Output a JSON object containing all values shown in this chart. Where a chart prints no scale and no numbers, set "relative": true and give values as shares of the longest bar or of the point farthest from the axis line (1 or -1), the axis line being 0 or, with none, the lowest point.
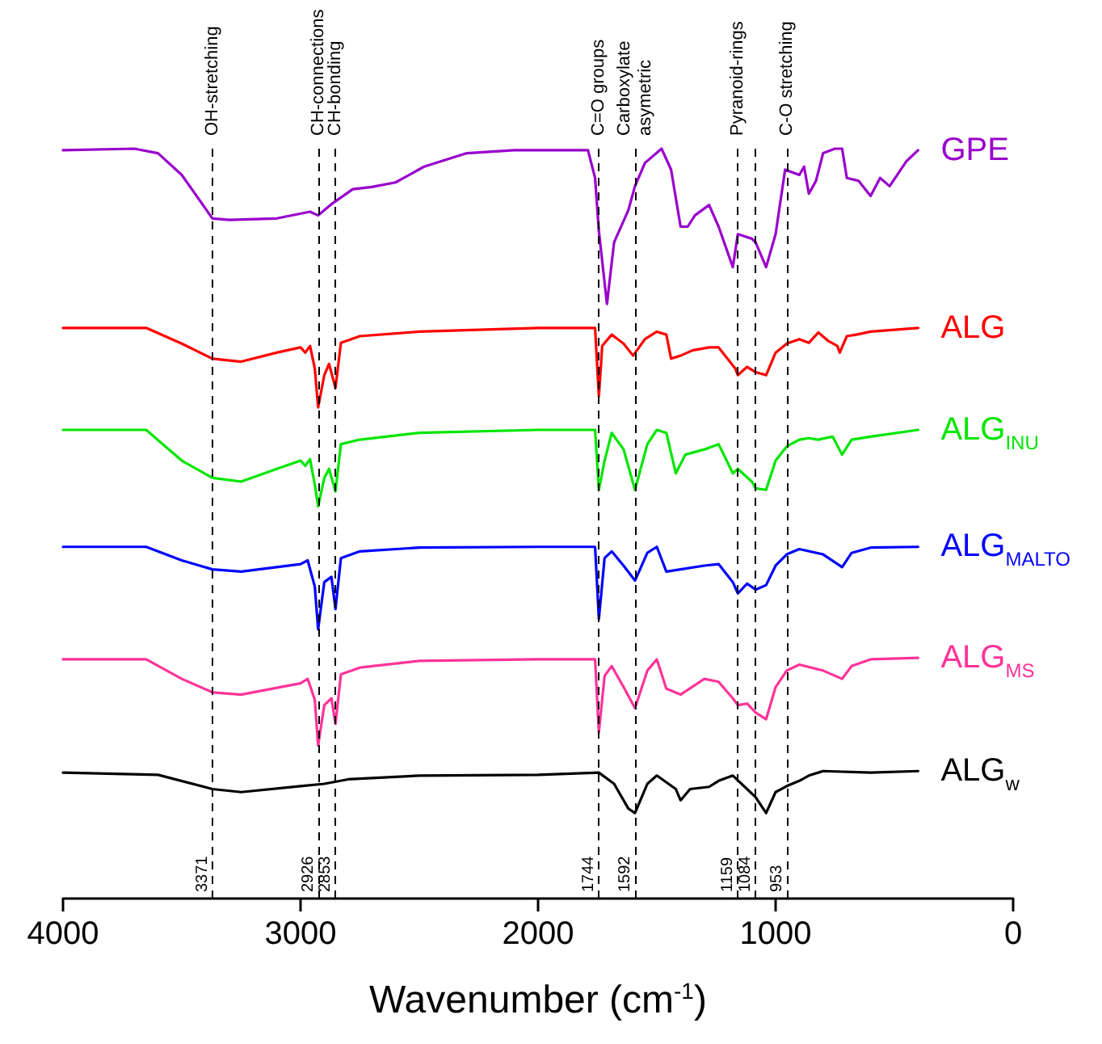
{
  "chart_data": {
    "type": "line",
    "relative": true,
    "xlabel": "Wavenumber (cm$^{-1}$)",
    "xlim": [
      4000,
      0
    ],
    "xticks": [
      4000,
      3000,
      2000,
      1000,
      0
    ],
    "marker": "none",
    "line_style": "solid",
    "grid": false,
    "legend": false,
    "series": [
      {
        "name": "GPE",
        "color": "#9900cc",
        "x": [
          4000,
          3700,
          3600,
          3500,
          3420,
          3371,
          3300,
          3100,
          2960,
          2926,
          2870,
          2780,
          2700,
          2600,
          2480,
          2300,
          2100,
          1790,
          1760,
          1744,
          1710,
          1680,
          1620,
          1592,
          1550,
          1480,
          1440,
          1400,
          1370,
          1340,
          1280,
          1240,
          1180,
          1159,
          1100,
          1084,
          1040,
          1000,
          960,
          900,
          880,
          860,
          830,
          800,
          750,
          720,
          700,
          650,
          600,
          560,
          520,
          450,
          400
        ],
        "values": [
          0.998,
          1.0,
          0.994,
          0.965,
          0.929,
          0.907,
          0.905,
          0.907,
          0.916,
          0.911,
          0.926,
          0.946,
          0.949,
          0.955,
          0.976,
          0.994,
          0.998,
          0.998,
          0.961,
          0.89,
          0.793,
          0.875,
          0.918,
          0.95,
          0.981,
          1.0,
          0.972,
          0.896,
          0.896,
          0.911,
          0.925,
          0.896,
          0.842,
          0.886,
          0.88,
          0.875,
          0.842,
          0.886,
          0.972,
          0.965,
          0.976,
          0.94,
          0.957,
          0.994,
          1.0,
          1.0,
          0.961,
          0.957,
          0.937,
          0.961,
          0.95,
          0.983,
          0.998
        ]
      },
      {
        "name": "ALG",
        "color": "#ff0000",
        "x": [
          4000,
          3650,
          3500,
          3371,
          3250,
          3100,
          3000,
          2980,
          2960,
          2940,
          2926,
          2900,
          2880,
          2853,
          2830,
          2750,
          2500,
          2000,
          1760,
          1744,
          1730,
          1690,
          1640,
          1600,
          1550,
          1500,
          1460,
          1440,
          1400,
          1350,
          1280,
          1240,
          1170,
          1159,
          1120,
          1084,
          1040,
          1000,
          953,
          900,
          860,
          820,
          780,
          740,
          730,
          700,
          660,
          600,
          400
        ],
        "values": [
          0.761,
          0.761,
          0.74,
          0.72,
          0.716,
          0.728,
          0.735,
          0.728,
          0.737,
          0.707,
          0.655,
          0.698,
          0.713,
          0.681,
          0.741,
          0.75,
          0.756,
          0.761,
          0.761,
          0.67,
          0.737,
          0.752,
          0.74,
          0.724,
          0.746,
          0.756,
          0.752,
          0.72,
          0.724,
          0.731,
          0.735,
          0.735,
          0.707,
          0.698,
          0.709,
          0.702,
          0.698,
          0.728,
          0.74,
          0.746,
          0.741,
          0.755,
          0.744,
          0.737,
          0.728,
          0.75,
          0.752,
          0.756,
          0.761
        ]
      },
      {
        "name": "ALG$_{INU}$",
        "color": "#00e600",
        "x": [
          4000,
          3650,
          3500,
          3371,
          3250,
          3100,
          3000,
          2980,
          2960,
          2940,
          2926,
          2900,
          2880,
          2853,
          2830,
          2750,
          2500,
          2000,
          1760,
          1744,
          1720,
          1690,
          1640,
          1592,
          1540,
          1500,
          1460,
          1420,
          1380,
          1300,
          1240,
          1180,
          1159,
          1100,
          1084,
          1040,
          1000,
          953,
          900,
          860,
          820,
          760,
          720,
          680,
          600,
          400
        ],
        "values": [
          0.625,
          0.625,
          0.584,
          0.561,
          0.556,
          0.573,
          0.584,
          0.577,
          0.586,
          0.552,
          0.523,
          0.561,
          0.573,
          0.543,
          0.606,
          0.612,
          0.621,
          0.625,
          0.625,
          0.545,
          0.584,
          0.621,
          0.599,
          0.545,
          0.606,
          0.625,
          0.621,
          0.567,
          0.592,
          0.599,
          0.606,
          0.567,
          0.573,
          0.556,
          0.547,
          0.545,
          0.584,
          0.603,
          0.612,
          0.614,
          0.612,
          0.616,
          0.592,
          0.612,
          0.616,
          0.625
        ]
      },
      {
        "name": "ALG$_{MALTO}$",
        "color": "#0000ff",
        "x": [
          4000,
          3650,
          3500,
          3371,
          3250,
          3000,
          2970,
          2940,
          2926,
          2900,
          2870,
          2853,
          2830,
          2750,
          2500,
          2000,
          1760,
          1744,
          1720,
          1690,
          1640,
          1592,
          1540,
          1500,
          1460,
          1400,
          1300,
          1240,
          1180,
          1159,
          1120,
          1084,
          1040,
          1000,
          953,
          900,
          800,
          720,
          680,
          600,
          400
        ],
        "values": [
          0.469,
          0.469,
          0.451,
          0.439,
          0.436,
          0.446,
          0.451,
          0.416,
          0.359,
          0.422,
          0.429,
          0.386,
          0.454,
          0.463,
          0.468,
          0.469,
          0.469,
          0.373,
          0.454,
          0.463,
          0.444,
          0.424,
          0.461,
          0.469,
          0.436,
          0.439,
          0.444,
          0.446,
          0.422,
          0.407,
          0.42,
          0.412,
          0.418,
          0.444,
          0.459,
          0.466,
          0.459,
          0.442,
          0.461,
          0.468,
          0.469
        ]
      },
      {
        "name": "ALG$_{MS}$",
        "color": "#ff3399",
        "x": [
          4000,
          3650,
          3500,
          3371,
          3250,
          3000,
          2970,
          2940,
          2926,
          2900,
          2870,
          2853,
          2830,
          2750,
          2500,
          2000,
          1760,
          1744,
          1720,
          1690,
          1640,
          1592,
          1540,
          1500,
          1460,
          1400,
          1300,
          1240,
          1180,
          1159,
          1120,
          1084,
          1040,
          1000,
          953,
          900,
          800,
          720,
          680,
          600,
          400
        ],
        "values": [
          0.319,
          0.319,
          0.293,
          0.275,
          0.272,
          0.287,
          0.293,
          0.265,
          0.204,
          0.258,
          0.267,
          0.233,
          0.299,
          0.308,
          0.317,
          0.319,
          0.319,
          0.222,
          0.297,
          0.31,
          0.282,
          0.254,
          0.304,
          0.319,
          0.28,
          0.272,
          0.293,
          0.289,
          0.267,
          0.258,
          0.26,
          0.248,
          0.239,
          0.282,
          0.304,
          0.312,
          0.304,
          0.293,
          0.31,
          0.319,
          0.321
        ]
      },
      {
        "name": "ALG$_{w}$",
        "color": "#000000",
        "x": [
          4000,
          3600,
          3371,
          3250,
          3000,
          2900,
          2800,
          2500,
          2000,
          1744,
          1680,
          1620,
          1592,
          1540,
          1500,
          1420,
          1400,
          1360,
          1280,
          1240,
          1180,
          1120,
          1084,
          1040,
          1000,
          953,
          900,
          860,
          800,
          600,
          400
        ],
        "values": [
          0.168,
          0.165,
          0.146,
          0.142,
          0.15,
          0.153,
          0.159,
          0.164,
          0.165,
          0.168,
          0.153,
          0.12,
          0.114,
          0.153,
          0.164,
          0.146,
          0.131,
          0.146,
          0.149,
          0.157,
          0.164,
          0.146,
          0.135,
          0.114,
          0.142,
          0.15,
          0.157,
          0.164,
          0.17,
          0.168,
          0.17
        ]
      }
    ],
    "ref_lines": [
      {
        "axis": "x",
        "value": 3371,
        "label": "OH-stretching"
      },
      {
        "axis": "x",
        "value": 2926,
        "label": "CH-connections"
      },
      {
        "axis": "x",
        "value": 2853,
        "label": "CH-bonding"
      },
      {
        "axis": "x",
        "value": 1744,
        "label": "C=O groups"
      },
      {
        "axis": "x",
        "value": 1592,
        "label": "Carboxylate\nasymetric"
      },
      {
        "axis": "x",
        "value": 1159,
        "label": "Pyranoid-rings"
      },
      {
        "axis": "x",
        "value": 1084,
        "label": null
      },
      {
        "axis": "x",
        "value": 953,
        "label": "C-O stretching"
      }
    ],
    "annotations": [
      {
        "text": "3371",
        "x": 3371
      },
      {
        "text": "2926",
        "x": 2926
      },
      {
        "text": "2853",
        "x": 2853
      },
      {
        "text": "1744",
        "x": 1744
      },
      {
        "text": "1592",
        "x": 1592
      },
      {
        "text": "1159",
        "x": 1159
      },
      {
        "text": "1084",
        "x": 1084
      },
      {
        "text": "953",
        "x": 953
      }
    ]
  }
}
